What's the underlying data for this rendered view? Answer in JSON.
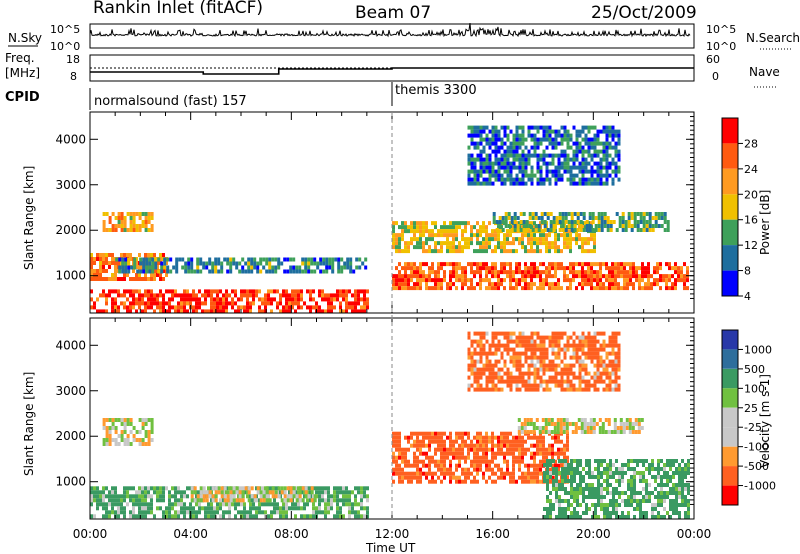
{
  "header": {
    "station": "Rankin Inlet (fitACF)",
    "beam": "Beam 07",
    "date": "25/Oct/2009"
  },
  "noise_panel": {
    "left_label": "N.Sky",
    "right_label": "N.Search",
    "left_ticks": [
      "10^5",
      "10^0"
    ],
    "right_ticks": [
      "10^5",
      "10^0"
    ]
  },
  "freq_panel": {
    "left_label_line1": "Freq.",
    "left_label_line2": "[MHz]",
    "right_label": "Nave",
    "left_ticks": [
      "18",
      "8"
    ],
    "right_ticks": [
      "60",
      "0"
    ]
  },
  "cpid_panel": {
    "label": "CPID",
    "segments": [
      {
        "label": "normalsound (fast) 157",
        "start_hour": 0
      },
      {
        "label": "themis 3300",
        "start_hour": 12
      }
    ]
  },
  "power_colorbar": {
    "label": "Power [dB]",
    "ticks": [
      "28",
      "24",
      "20",
      "16",
      "12",
      "8",
      "4"
    ],
    "colors": [
      "#ff0000",
      "#ff5a10",
      "#ff9a20",
      "#f0c000",
      "#3ea05a",
      "#1e6e9e",
      "#0000ff"
    ]
  },
  "velocity_colorbar": {
    "label": "Velocity [m s-1]",
    "ticks": [
      "1000",
      "500",
      "100",
      "25",
      "-25",
      "-100",
      "-500",
      "-1000"
    ],
    "colors": [
      "#2838a8",
      "#2e6e9c",
      "#3a9a62",
      "#70c040",
      "#c8c8c8",
      "#c8c8c8",
      "#ff9a30",
      "#ff6020",
      "#ff0000"
    ]
  },
  "chart_data": [
    {
      "type": "heatmap",
      "name_hint": "power",
      "ylabel": "Slant Range [km]",
      "xlabel": "Time UT",
      "x_ticks": [
        "00:00",
        "04:00",
        "08:00",
        "12:00",
        "16:00",
        "20:00",
        "00:00"
      ],
      "y_ticks": [
        1000,
        2000,
        3000,
        4000
      ],
      "xlim_hours": [
        0,
        24
      ],
      "ylim_km": [
        180,
        4600
      ],
      "bands": [
        {
          "t0": 0,
          "t1": 11,
          "r0": 200,
          "r1": 700,
          "value_db": 26
        },
        {
          "t0": 0,
          "t1": 3,
          "r0": 900,
          "r1": 1500,
          "value_db": 22
        },
        {
          "t0": 1,
          "t1": 11,
          "r0": 1100,
          "r1": 1400,
          "value_db": 10
        },
        {
          "t0": 0.5,
          "t1": 2.5,
          "r0": 2000,
          "r1": 2400,
          "value_db": 18
        },
        {
          "t0": 12,
          "t1": 23.8,
          "r0": 700,
          "r1": 1300,
          "value_db": 24
        },
        {
          "t0": 12,
          "t1": 20,
          "r0": 1500,
          "r1": 2200,
          "value_db": 16
        },
        {
          "t0": 16,
          "t1": 23,
          "r0": 2000,
          "r1": 2400,
          "value_db": 12
        },
        {
          "t0": 15,
          "t1": 21,
          "r0": 3000,
          "r1": 4300,
          "value_db": 8
        }
      ]
    },
    {
      "type": "heatmap",
      "name_hint": "velocity",
      "ylabel": "Slant Range [km]",
      "xlabel": "Time UT",
      "x_ticks": [
        "00:00",
        "04:00",
        "08:00",
        "12:00",
        "16:00",
        "20:00",
        "00:00"
      ],
      "y_ticks": [
        1000,
        2000,
        3000,
        4000
      ],
      "xlim_hours": [
        0,
        24
      ],
      "ylim_km": [
        180,
        4600
      ],
      "bands": [
        {
          "t0": 0,
          "t1": 11,
          "r0": 200,
          "r1": 900,
          "value_ms": 150
        },
        {
          "t0": 0.5,
          "t1": 2.5,
          "r0": 1800,
          "r1": 2400,
          "value_ms": 0
        },
        {
          "t0": 4,
          "t1": 9,
          "r0": 600,
          "r1": 900,
          "value_ms": 0
        },
        {
          "t0": 12,
          "t1": 19,
          "r0": 1000,
          "r1": 2100,
          "value_ms": -300
        },
        {
          "t0": 18,
          "t1": 23.8,
          "r0": 200,
          "r1": 1500,
          "value_ms": 200
        },
        {
          "t0": 17,
          "t1": 22,
          "r0": 2100,
          "r1": 2400,
          "value_ms": 0
        },
        {
          "t0": 15,
          "t1": 21,
          "r0": 3000,
          "r1": 4300,
          "value_ms": -200
        }
      ]
    }
  ]
}
